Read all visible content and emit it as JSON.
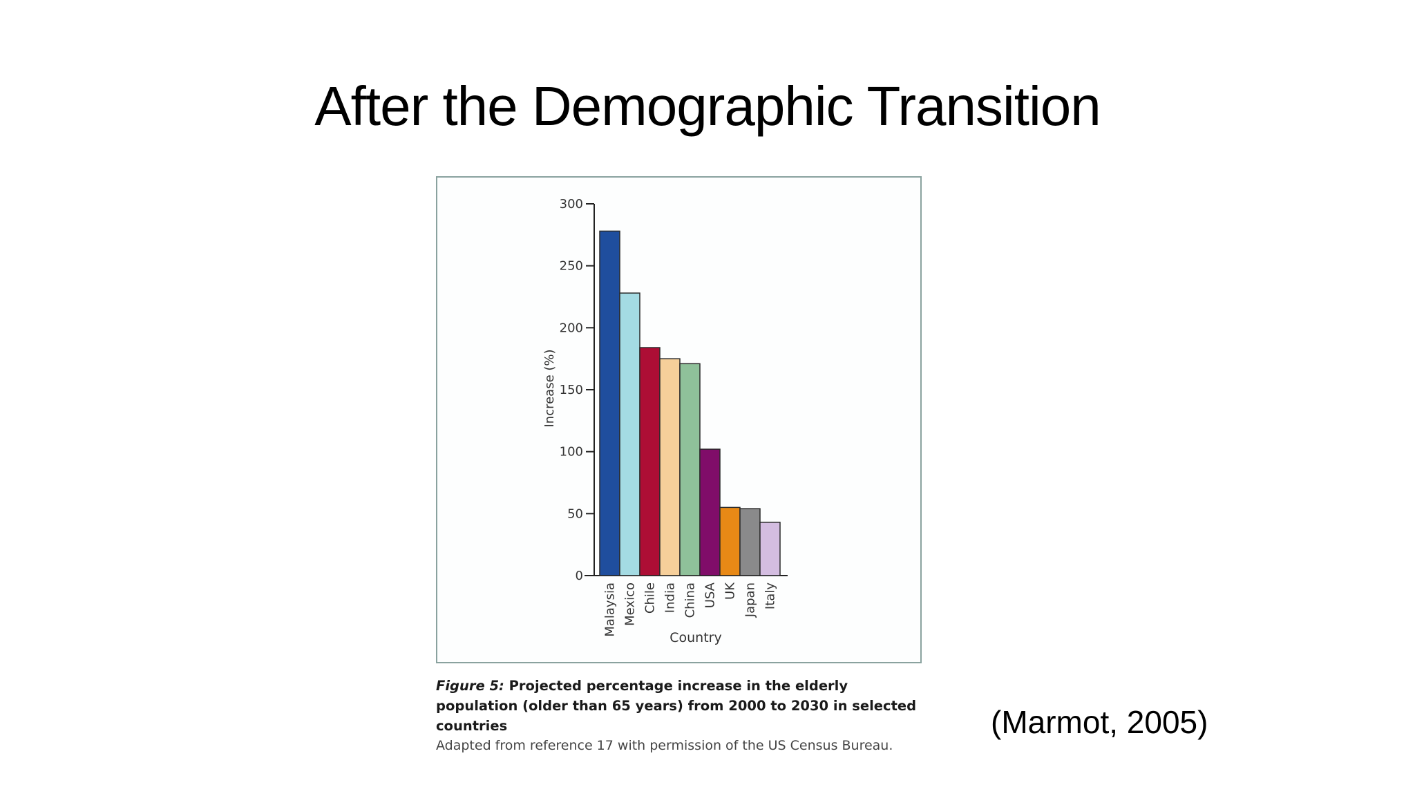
{
  "slide": {
    "title": "After the Demographic Transition",
    "citation": "(Marmot, 2005)"
  },
  "figure": {
    "label": "Figure 5:",
    "caption_title": "Projected percentage increase in the elderly population (older than 65 years) from 2000 to 2030 in selected countries",
    "caption_source": "Adapted from reference 17 with permission of the US Census Bureau."
  },
  "chart_data": {
    "type": "bar",
    "title": "",
    "xlabel": "Country",
    "ylabel": "Increase (%)",
    "ylim": [
      0,
      300
    ],
    "yticks": [
      0,
      50,
      100,
      150,
      200,
      250,
      300
    ],
    "grid": false,
    "legend": "none",
    "categories": [
      "Malaysia",
      "Mexico",
      "Chile",
      "India",
      "China",
      "USA",
      "UK",
      "Japan",
      "Italy"
    ],
    "values": [
      278,
      228,
      184,
      175,
      171,
      102,
      55,
      54,
      43
    ],
    "colors": [
      "#1f4e9e",
      "#a4dbe3",
      "#ad0e35",
      "#f6cf9a",
      "#8fc19a",
      "#800d69",
      "#e88916",
      "#8a8a8b",
      "#d4bde1"
    ]
  }
}
